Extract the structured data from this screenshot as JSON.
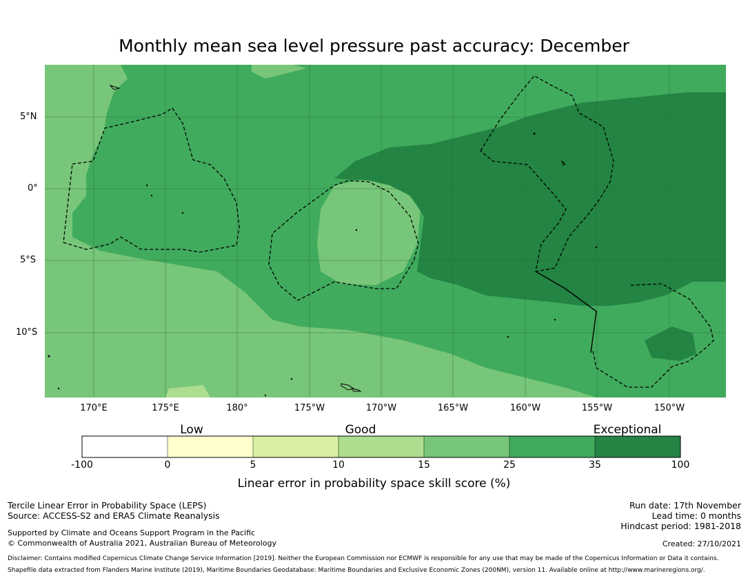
{
  "title": "Monthly mean sea level pressure past accuracy: December",
  "map": {
    "lat_labels": [
      "5°N",
      "0°",
      "5°S",
      "10°S"
    ],
    "lon_labels": [
      "170°E",
      "175°E",
      "180°",
      "175°W",
      "170°W",
      "165°W",
      "160°W",
      "155°W",
      "150°W"
    ],
    "colors": {
      "c15_25": "#78c679",
      "c25_35": "#41ab5d",
      "c35_100": "#238443",
      "light": "#addd8e"
    }
  },
  "colorbar": {
    "categories": [
      "Low",
      "Good",
      "Exceptional"
    ],
    "ticks": [
      "-100",
      "0",
      "5",
      "10",
      "15",
      "25",
      "35",
      "100"
    ],
    "colors": [
      "#ffffff",
      "#ffffcc",
      "#d9f0a3",
      "#addd8e",
      "#78c679",
      "#41ab5d",
      "#238443"
    ],
    "label": "Linear error in probability space skill score (%)"
  },
  "info": {
    "line1": "Tercile Linear Error in Probability Space (LEPS)",
    "line2": "Source: ACCESS-S2 and ERA5 Climate Reanalysis",
    "support": "Supported by Climate and Oceans Support Program in the Pacific",
    "copyright": "© Commonwealth of Australia 2021, Australian Bureau of Meteorology",
    "run_date": "Run date: 17th November",
    "lead_time": "Lead time: 0 months",
    "hindcast": "Hindcast period: 1981-2018",
    "created": "Created: 27/10/2021",
    "disclaimer": "Disclaimer: Contains modified Copernicus Climate Change Service Information [2019]. Neither the European Commission nor ECMWF is responsible for any use that may be made of the Copernicus Information or Data it contains.",
    "shapefile": "Shapefile data extracted from Flanders Marine Institute (2019), Maritime Boundaries Geodatabase: Maritime Boundaries and Exclusive Economic Zones (200NM), version 11. Available online at http://www.marineregions.org/."
  }
}
